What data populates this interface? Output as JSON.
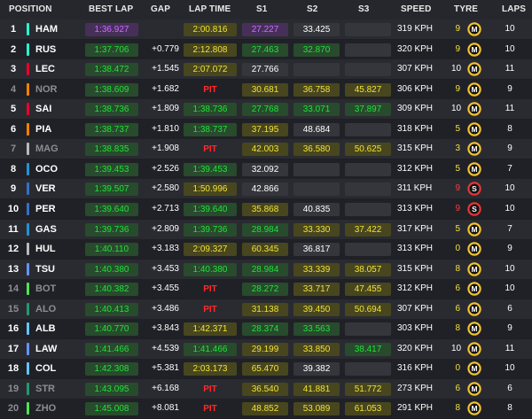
{
  "header": {
    "position": "POSITION",
    "best_lap": "BEST LAP",
    "gap": "GAP",
    "lap_time": "LAP TIME",
    "s1": "S1",
    "s2": "S2",
    "s3": "S3",
    "speed": "SPEED",
    "tyre": "TYRE",
    "laps": "LAPS"
  },
  "colors": {
    "green": "#22e03a",
    "purple": "#cf6bff",
    "yellow": "#f2e13a",
    "pit": "#ff2a2a",
    "medium": "#f2c230",
    "soft": "#e8353a"
  },
  "rows": [
    {
      "pos": "1",
      "code": "HAM",
      "team": "#27f4d2",
      "dim": false,
      "best": "1:36.927",
      "bestc": "purple",
      "gap": "",
      "lt": "2:00.816",
      "ltc": "yellow",
      "s1": "27.227",
      "s1c": "purple",
      "s2": "33.425",
      "s2c": "white",
      "s3": "",
      "s3c": "white",
      "speed": "319 KPH",
      "tl": "9",
      "tlc": "yellow",
      "tyre": "M",
      "laps": "10"
    },
    {
      "pos": "2",
      "code": "RUS",
      "team": "#27f4d2",
      "dim": false,
      "best": "1:37.706",
      "bestc": "green",
      "gap": "+0.779",
      "lt": "2:12.808",
      "ltc": "yellow",
      "s1": "27.463",
      "s1c": "green",
      "s2": "32.870",
      "s2c": "green",
      "s3": "",
      "s3c": "white",
      "speed": "320 KPH",
      "tl": "9",
      "tlc": "yellow",
      "tyre": "M",
      "laps": "10"
    },
    {
      "pos": "3",
      "code": "LEC",
      "team": "#e8002d",
      "dim": false,
      "best": "1:38.472",
      "bestc": "green",
      "gap": "+1.545",
      "lt": "2:07.072",
      "ltc": "yellow",
      "s1": "27.766",
      "s1c": "white",
      "s2": "",
      "s2c": "white",
      "s3": "",
      "s3c": "white",
      "speed": "307 KPH",
      "tl": "10",
      "tlc": "white",
      "tyre": "M",
      "laps": "11"
    },
    {
      "pos": "4",
      "code": "NOR",
      "team": "#ff8000",
      "dim": true,
      "best": "1:38.609",
      "bestc": "green",
      "gap": "+1.682",
      "lt": "PIT",
      "ltc": "pit",
      "s1": "30.681",
      "s1c": "yellow",
      "s2": "36.758",
      "s2c": "yellow",
      "s3": "45.827",
      "s3c": "yellow",
      "speed": "306 KPH",
      "tl": "9",
      "tlc": "yellow",
      "tyre": "M",
      "laps": "9"
    },
    {
      "pos": "5",
      "code": "SAI",
      "team": "#e8002d",
      "dim": false,
      "best": "1:38.736",
      "bestc": "green",
      "gap": "+1.809",
      "lt": "1:38.736",
      "ltc": "green",
      "s1": "27.768",
      "s1c": "green",
      "s2": "33.071",
      "s2c": "green",
      "s3": "37.897",
      "s3c": "green",
      "speed": "309 KPH",
      "tl": "10",
      "tlc": "white",
      "tyre": "M",
      "laps": "11"
    },
    {
      "pos": "6",
      "code": "PIA",
      "team": "#ff8000",
      "dim": false,
      "best": "1:38.737",
      "bestc": "green",
      "gap": "+1.810",
      "lt": "1:38.737",
      "ltc": "green",
      "s1": "37.195",
      "s1c": "yellow",
      "s2": "48.684",
      "s2c": "white",
      "s3": "",
      "s3c": "white",
      "speed": "318 KPH",
      "tl": "5",
      "tlc": "yellow",
      "tyre": "M",
      "laps": "8"
    },
    {
      "pos": "7",
      "code": "MAG",
      "team": "#b6babd",
      "dim": true,
      "best": "1:38.835",
      "bestc": "green",
      "gap": "+1.908",
      "lt": "PIT",
      "ltc": "pit",
      "s1": "42.003",
      "s1c": "yellow",
      "s2": "36.580",
      "s2c": "yellow",
      "s3": "50.625",
      "s3c": "yellow",
      "speed": "315 KPH",
      "tl": "3",
      "tlc": "yellow",
      "tyre": "M",
      "laps": "9"
    },
    {
      "pos": "8",
      "code": "OCO",
      "team": "#2293d1",
      "dim": false,
      "best": "1:39.453",
      "bestc": "green",
      "gap": "+2.526",
      "lt": "1:39.453",
      "ltc": "green",
      "s1": "32.092",
      "s1c": "white",
      "s2": "",
      "s2c": "white",
      "s3": "",
      "s3c": "white",
      "speed": "312 KPH",
      "tl": "5",
      "tlc": "yellow",
      "tyre": "M",
      "laps": "7"
    },
    {
      "pos": "9",
      "code": "VER",
      "team": "#3671c6",
      "dim": false,
      "best": "1:39.507",
      "bestc": "green",
      "gap": "+2.580",
      "lt": "1:50.996",
      "ltc": "yellow",
      "s1": "42.866",
      "s1c": "white",
      "s2": "",
      "s2c": "white",
      "s3": "",
      "s3c": "white",
      "speed": "311 KPH",
      "tl": "9",
      "tlc": "red",
      "tyre": "S",
      "laps": "10"
    },
    {
      "pos": "10",
      "code": "PER",
      "team": "#3671c6",
      "dim": false,
      "best": "1:39.640",
      "bestc": "green",
      "gap": "+2.713",
      "lt": "1:39.640",
      "ltc": "green",
      "s1": "35.868",
      "s1c": "yellow",
      "s2": "40.835",
      "s2c": "white",
      "s3": "",
      "s3c": "white",
      "speed": "313 KPH",
      "tl": "9",
      "tlc": "red",
      "tyre": "S",
      "laps": "10"
    },
    {
      "pos": "11",
      "code": "GAS",
      "team": "#2293d1",
      "dim": false,
      "best": "1:39.736",
      "bestc": "green",
      "gap": "+2.809",
      "lt": "1:39.736",
      "ltc": "green",
      "s1": "28.984",
      "s1c": "green",
      "s2": "33.330",
      "s2c": "yellow",
      "s3": "37.422",
      "s3c": "yellow",
      "speed": "317 KPH",
      "tl": "5",
      "tlc": "yellow",
      "tyre": "M",
      "laps": "7"
    },
    {
      "pos": "12",
      "code": "HUL",
      "team": "#b6babd",
      "dim": false,
      "best": "1:40.110",
      "bestc": "green",
      "gap": "+3.183",
      "lt": "2:09.327",
      "ltc": "yellow",
      "s1": "60.345",
      "s1c": "yellow",
      "s2": "36.817",
      "s2c": "white",
      "s3": "",
      "s3c": "white",
      "speed": "313 KPH",
      "tl": "0",
      "tlc": "yellow",
      "tyre": "M",
      "laps": "9"
    },
    {
      "pos": "13",
      "code": "TSU",
      "team": "#6692ff",
      "dim": false,
      "best": "1:40.380",
      "bestc": "green",
      "gap": "+3.453",
      "lt": "1:40.380",
      "ltc": "green",
      "s1": "28.984",
      "s1c": "green",
      "s2": "33.339",
      "s2c": "yellow",
      "s3": "38.057",
      "s3c": "yellow",
      "speed": "315 KPH",
      "tl": "8",
      "tlc": "yellow",
      "tyre": "M",
      "laps": "10"
    },
    {
      "pos": "14",
      "code": "BOT",
      "team": "#52e252",
      "dim": true,
      "best": "1:40.382",
      "bestc": "green",
      "gap": "+3.455",
      "lt": "PIT",
      "ltc": "pit",
      "s1": "28.272",
      "s1c": "green",
      "s2": "33.717",
      "s2c": "yellow",
      "s3": "47.455",
      "s3c": "yellow",
      "speed": "312 KPH",
      "tl": "6",
      "tlc": "yellow",
      "tyre": "M",
      "laps": "10"
    },
    {
      "pos": "15",
      "code": "ALO",
      "team": "#229971",
      "dim": true,
      "best": "1:40.413",
      "bestc": "green",
      "gap": "+3.486",
      "lt": "PIT",
      "ltc": "pit",
      "s1": "31.138",
      "s1c": "yellow",
      "s2": "39.450",
      "s2c": "yellow",
      "s3": "50.694",
      "s3c": "yellow",
      "speed": "307 KPH",
      "tl": "6",
      "tlc": "yellow",
      "tyre": "M",
      "laps": "6"
    },
    {
      "pos": "16",
      "code": "ALB",
      "team": "#64c4ff",
      "dim": false,
      "best": "1:40.770",
      "bestc": "green",
      "gap": "+3.843",
      "lt": "1:42.371",
      "ltc": "yellow",
      "s1": "28.374",
      "s1c": "green",
      "s2": "33.563",
      "s2c": "green",
      "s3": "",
      "s3c": "white",
      "speed": "303 KPH",
      "tl": "8",
      "tlc": "yellow",
      "tyre": "M",
      "laps": "9"
    },
    {
      "pos": "17",
      "code": "LAW",
      "team": "#6692ff",
      "dim": false,
      "best": "1:41.466",
      "bestc": "green",
      "gap": "+4.539",
      "lt": "1:41.466",
      "ltc": "green",
      "s1": "29.199",
      "s1c": "yellow",
      "s2": "33.850",
      "s2c": "yellow",
      "s3": "38.417",
      "s3c": "green",
      "speed": "320 KPH",
      "tl": "10",
      "tlc": "white",
      "tyre": "M",
      "laps": "11"
    },
    {
      "pos": "18",
      "code": "COL",
      "team": "#64c4ff",
      "dim": false,
      "best": "1:42.308",
      "bestc": "green",
      "gap": "+5.381",
      "lt": "2:03.173",
      "ltc": "yellow",
      "s1": "65.470",
      "s1c": "yellow",
      "s2": "39.382",
      "s2c": "white",
      "s3": "",
      "s3c": "white",
      "speed": "316 KPH",
      "tl": "0",
      "tlc": "yellow",
      "tyre": "M",
      "laps": "10"
    },
    {
      "pos": "19",
      "code": "STR",
      "team": "#229971",
      "dim": true,
      "best": "1:43.095",
      "bestc": "green",
      "gap": "+6.168",
      "lt": "PIT",
      "ltc": "pit",
      "s1": "36.540",
      "s1c": "yellow",
      "s2": "41.881",
      "s2c": "yellow",
      "s3": "51.772",
      "s3c": "yellow",
      "speed": "273 KPH",
      "tl": "6",
      "tlc": "yellow",
      "tyre": "M",
      "laps": "6"
    },
    {
      "pos": "20",
      "code": "ZHO",
      "team": "#52e252",
      "dim": true,
      "best": "1:45.008",
      "bestc": "green",
      "gap": "+8.081",
      "lt": "PIT",
      "ltc": "pit",
      "s1": "48.852",
      "s1c": "yellow",
      "s2": "53.089",
      "s2c": "yellow",
      "s3": "61.053",
      "s3c": "yellow",
      "speed": "291 KPH",
      "tl": "8",
      "tlc": "yellow",
      "tyre": "M",
      "laps": "8"
    }
  ]
}
